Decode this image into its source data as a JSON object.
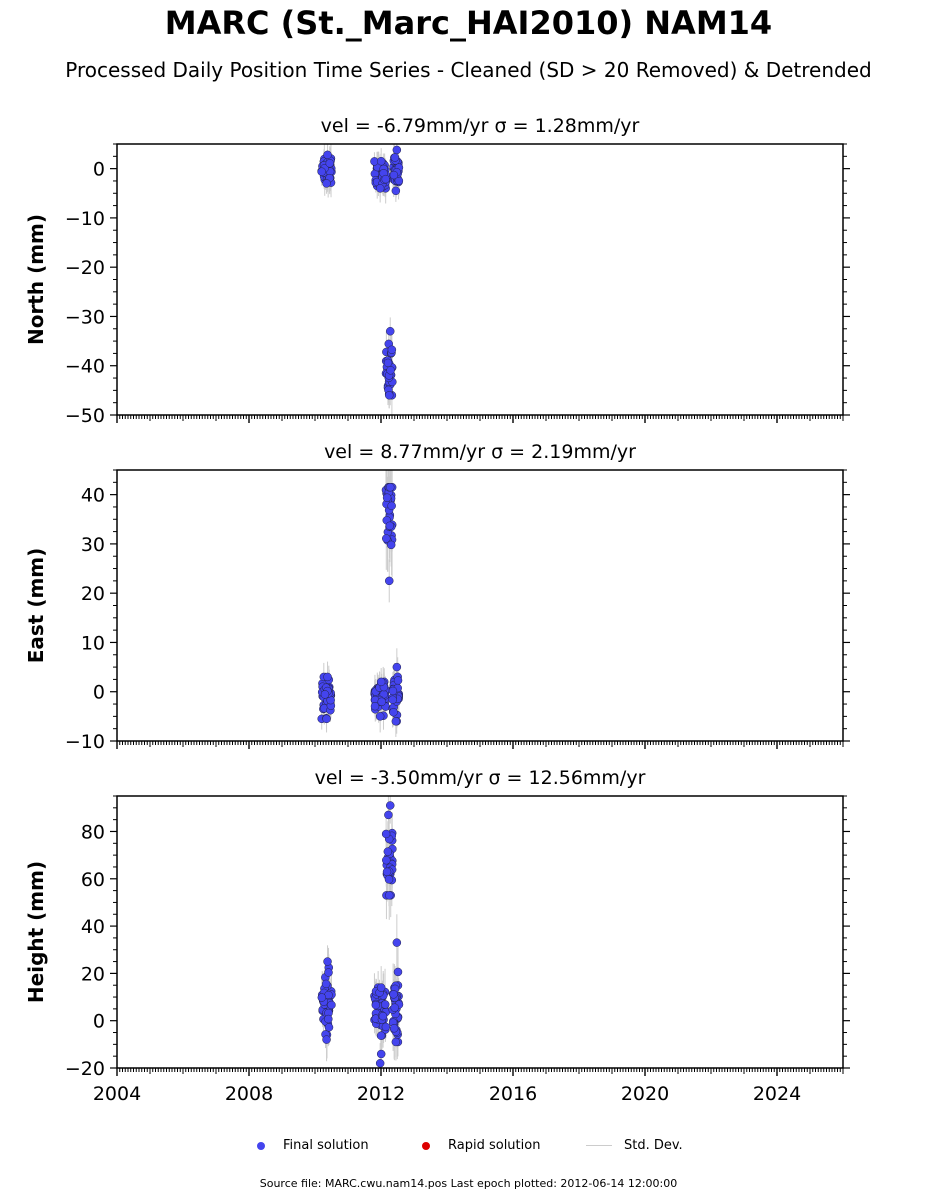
{
  "header": {
    "title": "MARC (St._Marc_HAI2010) NAM14",
    "subtitle": "Processed Daily Position Time Series - Cleaned (SD > 20 Removed) & Detrended"
  },
  "legend": {
    "final": "Final solution",
    "rapid": "Rapid solution",
    "std": "Std. Dev.",
    "final_color": "#4444ee",
    "rapid_color": "#dd0000",
    "std_color": "#cccccc"
  },
  "footer": {
    "source": "Source file: MARC.cwu.nam14.pos  Last epoch plotted: 2012-06-14 12:00:00"
  },
  "chart_data": [
    {
      "type": "scatter",
      "panel": "north",
      "title": "vel = -6.79mm/yr   σ = 1.28mm/yr",
      "ylabel": "North (mm)",
      "xlabel": "",
      "xlim": [
        2004,
        2026
      ],
      "ylim": [
        -50,
        5
      ],
      "yticks": [
        0,
        -10,
        -20,
        -30,
        -40,
        -50
      ],
      "xticks": [
        2004,
        2008,
        2012,
        2016,
        2020,
        2024
      ],
      "show_x_tick_labels": false,
      "clusters": [
        {
          "x": [
            2010.2,
            2010.5
          ],
          "y_mean": 0,
          "y_spread": 1.6,
          "y_min": -3,
          "y_max": 2.8,
          "n": 40
        },
        {
          "x": [
            2011.8,
            2012.15
          ],
          "y_mean": -1.5,
          "y_spread": 1.4,
          "y_min": -4,
          "y_max": 1.5,
          "n": 55
        },
        {
          "x": [
            2012.15,
            2012.35
          ],
          "y_mean": -41,
          "y_spread": 2.5,
          "y_min": -46,
          "y_max": -33,
          "n": 30
        },
        {
          "x": [
            2012.35,
            2012.55
          ],
          "y_mean": -0.5,
          "y_spread": 1.8,
          "y_min": -4.5,
          "y_max": 3.8,
          "n": 35
        }
      ]
    },
    {
      "type": "scatter",
      "panel": "east",
      "title": "vel = 8.77mm/yr   σ = 2.19mm/yr",
      "ylabel": "East (mm)",
      "xlabel": "",
      "xlim": [
        2004,
        2026
      ],
      "ylim": [
        -10,
        45
      ],
      "yticks": [
        40,
        30,
        20,
        10,
        0,
        -10
      ],
      "xticks": [
        2004,
        2008,
        2012,
        2016,
        2020,
        2024
      ],
      "show_x_tick_labels": false,
      "clusters": [
        {
          "x": [
            2010.2,
            2010.5
          ],
          "y_mean": -1,
          "y_spread": 1.8,
          "y_min": -5.5,
          "y_max": 3,
          "n": 40
        },
        {
          "x": [
            2011.8,
            2012.15
          ],
          "y_mean": -1,
          "y_spread": 1.6,
          "y_min": -5,
          "y_max": 2,
          "n": 55
        },
        {
          "x": [
            2012.15,
            2012.35
          ],
          "y_mean": 36,
          "y_spread": 5,
          "y_min": 22.5,
          "y_max": 41.5,
          "n": 30
        },
        {
          "x": [
            2012.35,
            2012.55
          ],
          "y_mean": -0.5,
          "y_spread": 2,
          "y_min": -6,
          "y_max": 5,
          "n": 35
        }
      ]
    },
    {
      "type": "scatter",
      "panel": "height",
      "title": "vel = -3.50mm/yr   σ = 12.56mm/yr",
      "ylabel": "Height (mm)",
      "xlabel": "",
      "xlim": [
        2004,
        2026
      ],
      "ylim": [
        -20,
        95
      ],
      "yticks": [
        80,
        60,
        40,
        20,
        0,
        -20
      ],
      "xticks": [
        2004,
        2008,
        2012,
        2016,
        2020,
        2024
      ],
      "show_x_tick_labels": true,
      "clusters": [
        {
          "x": [
            2010.2,
            2010.5
          ],
          "y_mean": 7,
          "y_spread": 7,
          "y_min": -8,
          "y_max": 25,
          "n": 40
        },
        {
          "x": [
            2011.8,
            2012.15
          ],
          "y_mean": 3,
          "y_spread": 6,
          "y_min": -18,
          "y_max": 14,
          "n": 55
        },
        {
          "x": [
            2012.15,
            2012.35
          ],
          "y_mean": 68,
          "y_spread": 8,
          "y_min": 53,
          "y_max": 91,
          "n": 30
        },
        {
          "x": [
            2012.35,
            2012.55
          ],
          "y_mean": 6,
          "y_spread": 8,
          "y_min": -9,
          "y_max": 33,
          "n": 35
        }
      ]
    }
  ]
}
